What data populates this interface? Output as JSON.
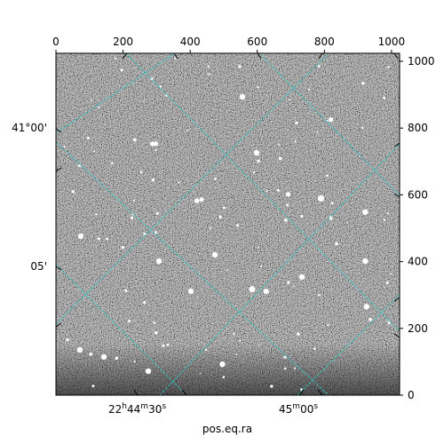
{
  "chart_data": {
    "type": "astronomical-image",
    "image_colormap": "grayscale",
    "xlabel": "pos.eq.ra",
    "ylabel": "",
    "pixel_axes": {
      "x_ticks": [
        "0",
        "200",
        "400",
        "600",
        "800",
        "1000"
      ],
      "y_ticks": [
        "0",
        "200",
        "400",
        "600",
        "800",
        "1000"
      ],
      "xlim": [
        0,
        1024
      ],
      "ylim": [
        0,
        1024
      ]
    },
    "world_axes": {
      "ra_ticks": [
        {
          "label_main": "22",
          "label_h": "h",
          "label_m1": "44",
          "label_m": "m",
          "label_s1": "30",
          "label_s": "s"
        },
        {
          "label_main": "45",
          "label_m": "m",
          "label_s1": "00",
          "label_s": "s"
        }
      ],
      "dec_ticks": [
        "41°00'",
        "05'"
      ]
    },
    "grid": true,
    "grid_color": "#2ec8c8"
  }
}
